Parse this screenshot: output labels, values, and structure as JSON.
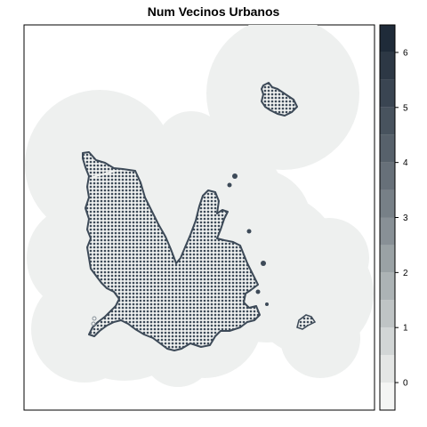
{
  "chart_data": {
    "type": "heatmap",
    "title": "Num Vecinos Urbanos",
    "legend": {
      "placement": "right",
      "range": [
        -0.5,
        6.5
      ],
      "ticks": [
        0,
        1,
        2,
        3,
        4,
        5,
        6
      ],
      "tick_labels": [
        "0",
        "1",
        "2",
        "3",
        "4",
        "5",
        "6"
      ],
      "bin_edges": [
        -0.5,
        0,
        0.5,
        1,
        1.5,
        2,
        2.5,
        3,
        3.5,
        4,
        4.5,
        5,
        5.5,
        6,
        6.5
      ],
      "colors": [
        "#f4f5f4",
        "#e4e6e5",
        "#d2d6d6",
        "#bfc4c5",
        "#acb3b5",
        "#9aa2a5",
        "#889096",
        "#778087",
        "#677079",
        "#57616b",
        "#48535e",
        "#3a4552",
        "#2d3845",
        "#1f2b39"
      ]
    },
    "grid": false,
    "map_values": {
      "buffer_zone": 0,
      "urban_core": 6
    }
  }
}
